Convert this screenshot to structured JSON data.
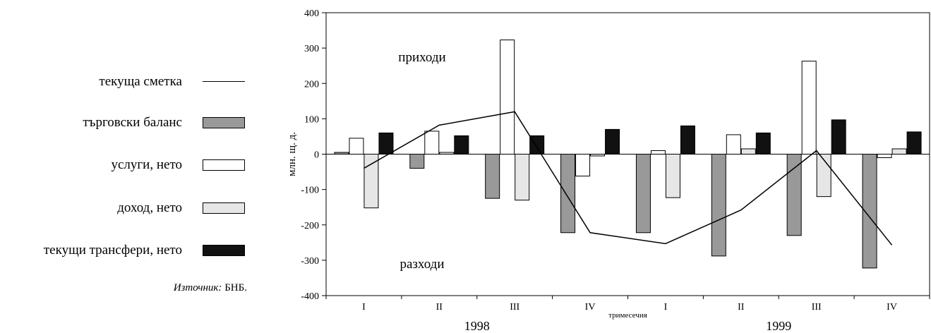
{
  "legend": {
    "items": [
      {
        "label": "текуща сметка",
        "kind": "line"
      },
      {
        "label": "търговски баланс",
        "kind": "box",
        "color": "#999999"
      },
      {
        "label": "услуги, нето",
        "kind": "box",
        "color": "#ffffff"
      },
      {
        "label": "доход, нето",
        "kind": "box",
        "color": "#e6e6e6"
      },
      {
        "label": "текущи трансфери, нето",
        "kind": "box",
        "color": "#111111"
      }
    ],
    "source_label": "Източник:",
    "source_value": "БНБ."
  },
  "chart_data": {
    "type": "bar",
    "ylabel": "млн. щ. д.",
    "xlabel": "тримесечия",
    "ylim": [
      -400,
      400
    ],
    "yticks": [
      400,
      300,
      200,
      100,
      0,
      -100,
      -200,
      -300,
      -400
    ],
    "categories": [
      "I",
      "II",
      "III",
      "IV",
      "I",
      "II",
      "III",
      "IV"
    ],
    "years": [
      {
        "label": "1998",
        "start": 0,
        "end": 3
      },
      {
        "label": "1999",
        "start": 4,
        "end": 7
      }
    ],
    "annotations": {
      "top": "приходи",
      "bottom": "разходи"
    },
    "series": [
      {
        "name": "търговски баланс",
        "kind": "bar",
        "color": "#999999",
        "values": [
          5,
          -40,
          -125,
          -222,
          -222,
          -288,
          -230,
          -322
        ]
      },
      {
        "name": "услуги, нето",
        "kind": "bar",
        "color": "#ffffff",
        "values": [
          45,
          65,
          323,
          -62,
          10,
          55,
          263,
          -10
        ]
      },
      {
        "name": "доход, нето",
        "kind": "bar",
        "color": "#e6e6e6",
        "values": [
          -152,
          5,
          -130,
          -5,
          -123,
          15,
          -120,
          15
        ]
      },
      {
        "name": "текущи трансфери, нето",
        "kind": "bar",
        "color": "#111111",
        "values": [
          60,
          52,
          52,
          70,
          80,
          60,
          97,
          63
        ]
      },
      {
        "name": "текуща сметка",
        "kind": "line",
        "color": "#000000",
        "values": [
          -40,
          82,
          120,
          -222,
          -253,
          -158,
          10,
          -257
        ]
      }
    ]
  }
}
